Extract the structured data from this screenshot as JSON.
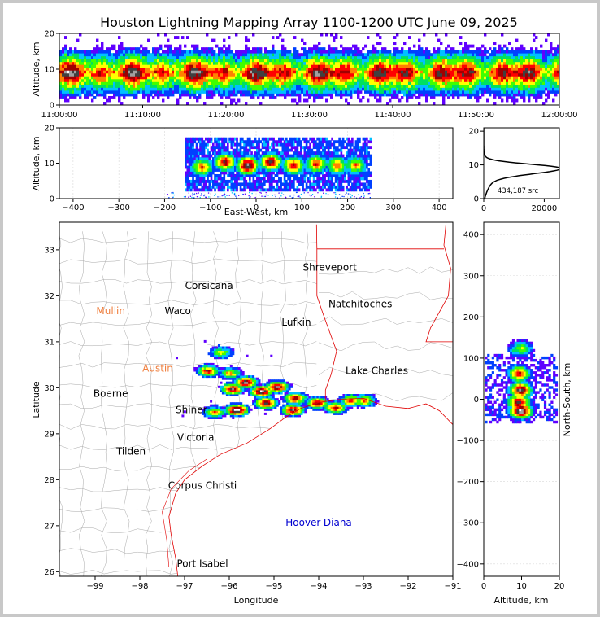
{
  "chart_data": {
    "type": "heatmap",
    "title": "Houston Lightning Mapping Array 1100-1200 UTC June 09, 2025",
    "colors": {
      "density": [
        "#ffffff",
        "#6000ff",
        "#0040ff",
        "#00c0ff",
        "#00e060",
        "#40ff00",
        "#ffff00",
        "#ff8000",
        "#ff0000",
        "#a00000",
        "#404040",
        "#a0a0a0",
        "#ffffff"
      ],
      "coast": "#e00000",
      "county": "#a8a8a8",
      "state": "#e00000",
      "profile": "#000000"
    },
    "panels": {
      "time_altitude": {
        "ylabel": "Altitude, km",
        "ylim": [
          0,
          20
        ],
        "yticks": [
          "0",
          "10",
          "20"
        ],
        "xlim": [
          "11:00:00",
          "12:00:00"
        ],
        "xticks": [
          "11:00:00",
          "11:10:00",
          "11:20:00",
          "11:30:00",
          "11:40:00",
          "11:50:00",
          "12:00:00"
        ],
        "core_altitude_km": 9
      },
      "east_altitude": {
        "xlabel": "East-West, km",
        "ylabel": "Altitude, km",
        "xlim": [
          -430,
          430
        ],
        "xticks": [
          "−400",
          "−300",
          "−200",
          "−100",
          "0",
          "100",
          "200",
          "300",
          "400"
        ],
        "ylim": [
          0,
          20
        ],
        "yticks": [
          "0",
          "10",
          "20"
        ],
        "cells": [
          {
            "x": -120,
            "alt": 8.5,
            "intensity": 0.7
          },
          {
            "x": -70,
            "alt": 10,
            "intensity": 0.85
          },
          {
            "x": -20,
            "alt": 9,
            "intensity": 1.0
          },
          {
            "x": 30,
            "alt": 10,
            "intensity": 0.9
          },
          {
            "x": 80,
            "alt": 9,
            "intensity": 0.8
          },
          {
            "x": 130,
            "alt": 9.5,
            "intensity": 0.75
          },
          {
            "x": 175,
            "alt": 9,
            "intensity": 0.7
          },
          {
            "x": 215,
            "alt": 9,
            "intensity": 0.65
          }
        ]
      },
      "altitude_histogram": {
        "annotation": "434,187 src",
        "xlim": [
          0,
          25000
        ],
        "xticks": [
          "0",
          "20000"
        ],
        "ylim": [
          0,
          21
        ],
        "yticks": [
          "0",
          "10",
          "20"
        ],
        "peak_altitude_km": 9,
        "peak_count": 24000,
        "total_sources": 434187
      },
      "plan_view": {
        "xlabel": "Longitude",
        "ylabel": "Latitude",
        "xlim": [
          -99.8,
          -91.0
        ],
        "ylim": [
          25.9,
          33.6
        ],
        "xticks": [
          "−99",
          "−98",
          "−97",
          "−96",
          "−95",
          "−94",
          "−93",
          "−92",
          "−91"
        ],
        "yticks": [
          "26",
          "27",
          "28",
          "29",
          "30",
          "31",
          "32",
          "33"
        ],
        "cities": [
          {
            "name": "Shreveport",
            "lon": -93.75,
            "lat": 32.55,
            "color": "#000000"
          },
          {
            "name": "Corsicana",
            "lon": -96.45,
            "lat": 32.15,
            "color": "#000000"
          },
          {
            "name": "Natchitoches",
            "lon": -93.07,
            "lat": 31.75,
            "color": "#000000"
          },
          {
            "name": "Mullin",
            "lon": -98.65,
            "lat": 31.6,
            "color": "#f08040"
          },
          {
            "name": "Waco",
            "lon": -97.15,
            "lat": 31.6,
            "color": "#000000"
          },
          {
            "name": "Lufkin",
            "lon": -94.5,
            "lat": 31.35,
            "color": "#000000"
          },
          {
            "name": "Austin",
            "lon": -97.6,
            "lat": 30.35,
            "color": "#f08040"
          },
          {
            "name": "Lake Charles",
            "lon": -92.7,
            "lat": 30.3,
            "color": "#000000"
          },
          {
            "name": "Boerne",
            "lon": -98.65,
            "lat": 29.8,
            "color": "#000000"
          },
          {
            "name": "Shiner",
            "lon": -96.85,
            "lat": 29.45,
            "color": "#000000"
          },
          {
            "name": "Victoria",
            "lon": -96.75,
            "lat": 28.85,
            "color": "#000000"
          },
          {
            "name": "Tilden",
            "lon": -98.2,
            "lat": 28.55,
            "color": "#000000"
          },
          {
            "name": "Corpus Christi",
            "lon": -96.6,
            "lat": 27.8,
            "color": "#000000"
          },
          {
            "name": "Hoover-Diana",
            "lon": -94.0,
            "lat": 27.0,
            "color": "#0000d0"
          },
          {
            "name": "Port Isabel",
            "lon": -96.6,
            "lat": 26.1,
            "color": "#000000"
          }
        ],
        "storm_cells": [
          {
            "lon": -96.5,
            "lat": 30.35,
            "intensity": 0.75
          },
          {
            "lon": -96.0,
            "lat": 30.3,
            "intensity": 0.6
          },
          {
            "lon": -96.2,
            "lat": 30.75,
            "intensity": 0.5
          },
          {
            "lon": -95.65,
            "lat": 30.1,
            "intensity": 0.9
          },
          {
            "lon": -95.3,
            "lat": 29.9,
            "intensity": 0.95
          },
          {
            "lon": -94.95,
            "lat": 30.0,
            "intensity": 0.9
          },
          {
            "lon": -95.95,
            "lat": 29.95,
            "intensity": 0.85
          },
          {
            "lon": -95.85,
            "lat": 29.5,
            "intensity": 1.0
          },
          {
            "lon": -95.2,
            "lat": 29.65,
            "intensity": 0.85
          },
          {
            "lon": -94.55,
            "lat": 29.75,
            "intensity": 0.8
          },
          {
            "lon": -94.6,
            "lat": 29.5,
            "intensity": 0.85
          },
          {
            "lon": -94.05,
            "lat": 29.65,
            "intensity": 0.8
          },
          {
            "lon": -93.65,
            "lat": 29.55,
            "intensity": 0.75
          },
          {
            "lon": -93.3,
            "lat": 29.7,
            "intensity": 0.7
          },
          {
            "lon": -93.0,
            "lat": 29.7,
            "intensity": 0.65
          },
          {
            "lon": -96.35,
            "lat": 29.45,
            "intensity": 0.6
          }
        ]
      },
      "north_altitude": {
        "xlabel": "Altitude, km",
        "ylabel": "North-South, km",
        "xlim": [
          0,
          20
        ],
        "xticks": [
          "0",
          "10",
          "20"
        ],
        "ylim": [
          -430,
          430
        ],
        "yticks": [
          "−400",
          "−300",
          "−200",
          "−100",
          "0",
          "100",
          "200",
          "300",
          "400"
        ],
        "cells": [
          {
            "y": 120,
            "alt": 9.5,
            "intensity": 0.5
          },
          {
            "y": 60,
            "alt": 9,
            "intensity": 0.75
          },
          {
            "y": 20,
            "alt": 9.5,
            "intensity": 0.9
          },
          {
            "y": -10,
            "alt": 9,
            "intensity": 0.85
          },
          {
            "y": -30,
            "alt": 9.5,
            "intensity": 1.0
          }
        ]
      }
    }
  }
}
